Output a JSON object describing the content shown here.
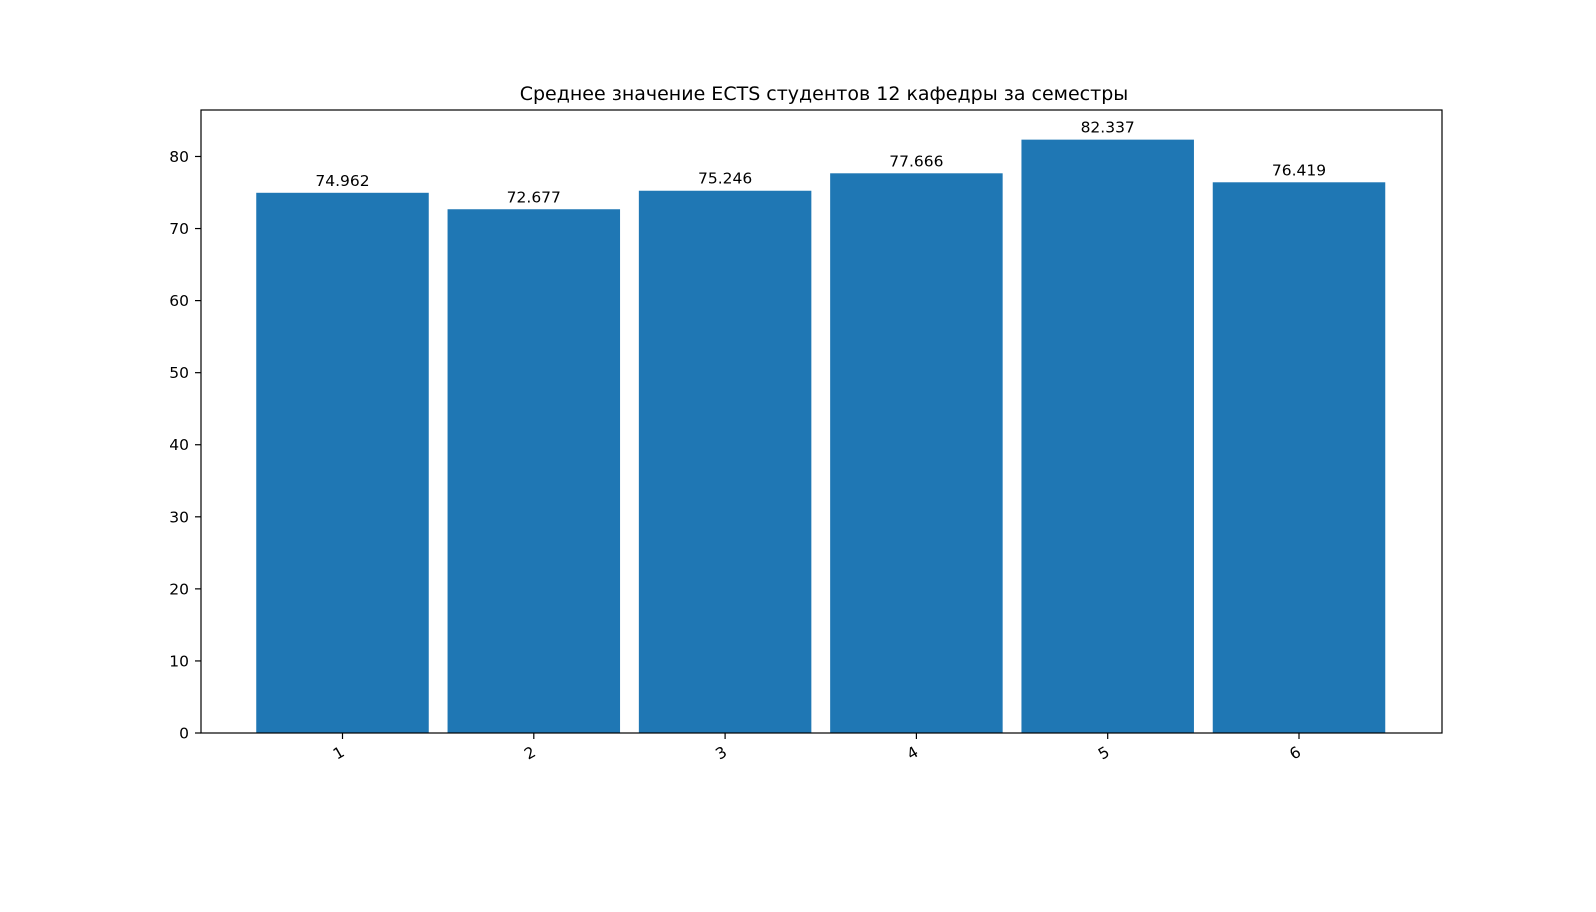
{
  "chart_data": {
    "type": "bar",
    "title": "Среднее значение ECTS студентов 12 кафедры за семестры",
    "xlabel": "",
    "ylabel": "",
    "categories": [
      "1",
      "2",
      "3",
      "4",
      "5",
      "6"
    ],
    "values": [
      74.962,
      72.677,
      75.246,
      77.666,
      82.337,
      76.419
    ],
    "data_labels": [
      "74.962",
      "72.677",
      "75.246",
      "77.666",
      "82.337",
      "76.419"
    ],
    "ylim": [
      0,
      86.45
    ],
    "yticks": [
      0,
      10,
      20,
      30,
      40,
      50,
      60,
      70,
      80
    ],
    "x_tick_rotation": 30,
    "grid": false,
    "legend": "none",
    "bar_color": "#1f77b4"
  }
}
